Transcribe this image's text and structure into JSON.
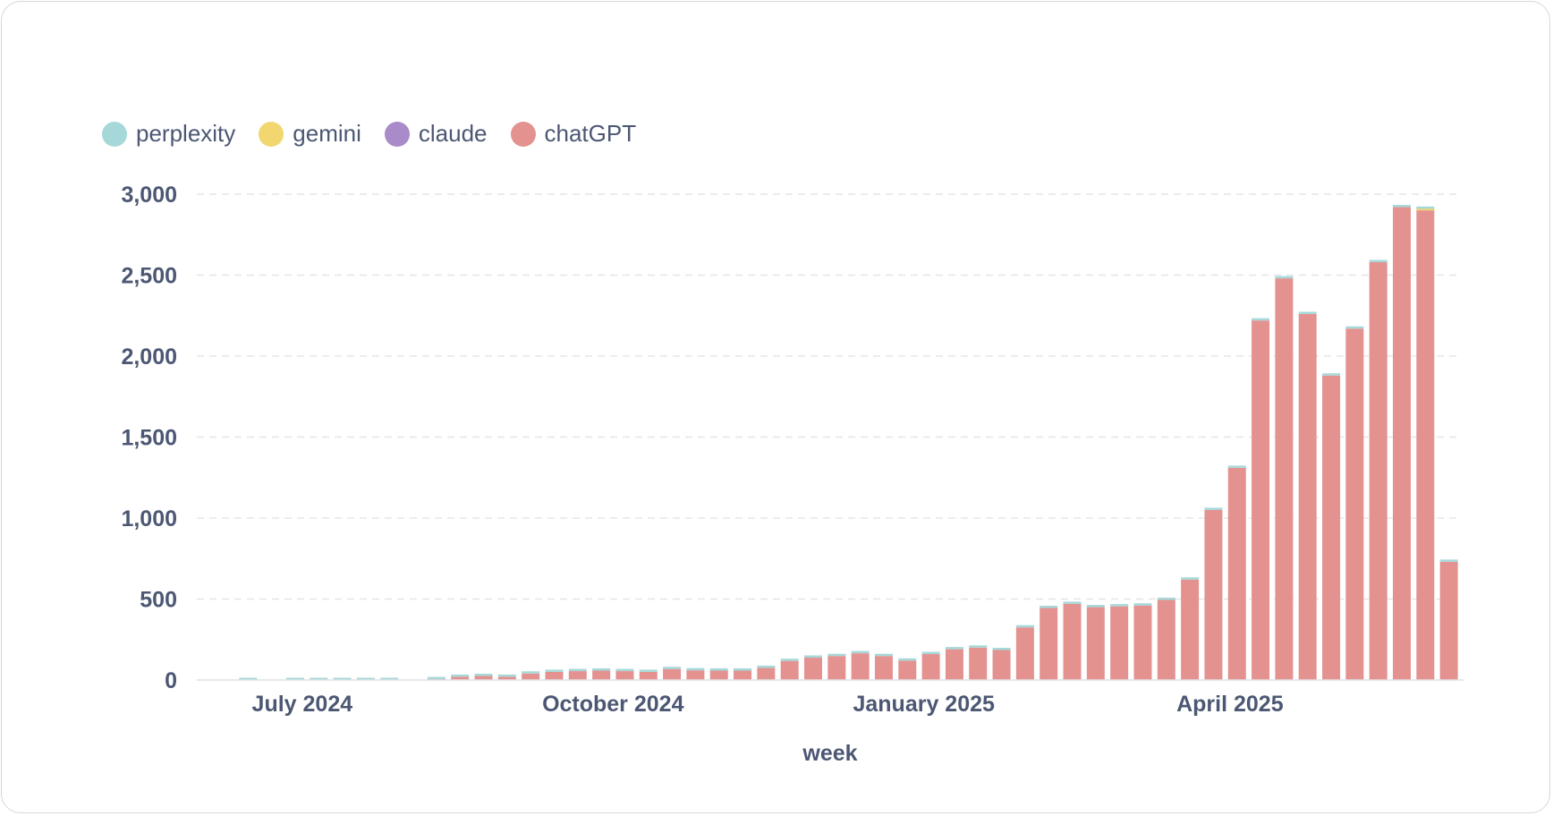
{
  "legend": [
    {
      "name": "perplexity",
      "color": "#a7d8d9"
    },
    {
      "name": "gemini",
      "color": "#f2d670"
    },
    {
      "name": "claude",
      "color": "#a88bc8"
    },
    {
      "name": "chatGPT",
      "color": "#e39290"
    }
  ],
  "chart_data": {
    "type": "bar",
    "stacked": true,
    "xlabel": "week",
    "ylabel": "",
    "ylim": [
      0,
      3000
    ],
    "yticks": [
      "0",
      "500",
      "1,000",
      "1,500",
      "2,000",
      "2,500",
      "3,000"
    ],
    "ytick_values": [
      0,
      500,
      1000,
      1500,
      2000,
      2500,
      3000
    ],
    "xticks": [
      {
        "label": "July 2024",
        "index": 3.3
      },
      {
        "label": "October 2024",
        "index": 16.5
      },
      {
        "label": "January 2025",
        "index": 29.7
      },
      {
        "label": "April 2025",
        "index": 42.7
      }
    ],
    "grid": true,
    "legend_position": "top-left",
    "categories": [
      "2024-06-17",
      "2024-06-24",
      "2024-07-01",
      "2024-07-08",
      "2024-07-15",
      "2024-07-22",
      "2024-07-29",
      "2024-08-05",
      "2024-08-12",
      "2024-08-19",
      "2024-08-26",
      "2024-09-02",
      "2024-09-09",
      "2024-09-16",
      "2024-09-23",
      "2024-09-30",
      "2024-10-07",
      "2024-10-14",
      "2024-10-21",
      "2024-10-28",
      "2024-11-04",
      "2024-11-11",
      "2024-11-18",
      "2024-11-25",
      "2024-12-02",
      "2024-12-09",
      "2024-12-16",
      "2024-12-23",
      "2024-12-30",
      "2025-01-06",
      "2025-01-13",
      "2025-01-20",
      "2025-01-27",
      "2025-02-03",
      "2025-02-10",
      "2025-02-17",
      "2025-02-24",
      "2025-03-03",
      "2025-03-10",
      "2025-03-17",
      "2025-03-24",
      "2025-03-31",
      "2025-04-07",
      "2025-04-14",
      "2025-04-21",
      "2025-04-28",
      "2025-05-05",
      "2025-05-12",
      "2025-05-19",
      "2025-05-26",
      "2025-06-02",
      "2025-06-09",
      "2025-06-16"
    ],
    "series": [
      {
        "name": "chatGPT",
        "color": "#e39290",
        "values": [
          0,
          0,
          0,
          0,
          0,
          0,
          0,
          0,
          0,
          5,
          20,
          25,
          20,
          40,
          50,
          55,
          58,
          55,
          50,
          68,
          60,
          58,
          58,
          75,
          118,
          138,
          148,
          165,
          148,
          120,
          160,
          190,
          200,
          185,
          325,
          445,
          470,
          450,
          455,
          460,
          495,
          620,
          1050,
          1310,
          2220,
          2480,
          2260,
          1880,
          2170,
          2580,
          2920,
          2900,
          730
        ]
      },
      {
        "name": "claude",
        "color": "#a88bc8",
        "values": [
          0,
          0,
          0,
          0,
          0,
          0,
          0,
          0,
          0,
          0,
          0,
          0,
          0,
          0,
          0,
          0,
          0,
          0,
          0,
          0,
          0,
          0,
          0,
          0,
          0,
          0,
          0,
          0,
          0,
          0,
          0,
          0,
          0,
          0,
          0,
          0,
          0,
          0,
          0,
          0,
          0,
          0,
          0,
          0,
          0,
          0,
          0,
          0,
          0,
          0,
          0,
          0,
          0
        ]
      },
      {
        "name": "gemini",
        "color": "#f2d670",
        "values": [
          0,
          0,
          0,
          0,
          0,
          0,
          0,
          0,
          0,
          0,
          0,
          0,
          0,
          0,
          0,
          0,
          0,
          0,
          0,
          0,
          0,
          0,
          0,
          0,
          0,
          0,
          0,
          0,
          0,
          0,
          0,
          0,
          0,
          0,
          0,
          0,
          0,
          0,
          0,
          0,
          0,
          0,
          0,
          0,
          0,
          0,
          0,
          0,
          0,
          0,
          0,
          10,
          0
        ]
      },
      {
        "name": "perplexity",
        "color": "#a7d8d9",
        "values": [
          0,
          10,
          0,
          10,
          10,
          10,
          10,
          10,
          0,
          10,
          10,
          10,
          8,
          8,
          8,
          8,
          8,
          8,
          8,
          8,
          8,
          8,
          8,
          8,
          8,
          8,
          8,
          8,
          8,
          8,
          8,
          8,
          8,
          8,
          8,
          8,
          8,
          8,
          8,
          8,
          8,
          8,
          8,
          10,
          10,
          10,
          10,
          10,
          10,
          10,
          10,
          10,
          10
        ]
      }
    ]
  }
}
